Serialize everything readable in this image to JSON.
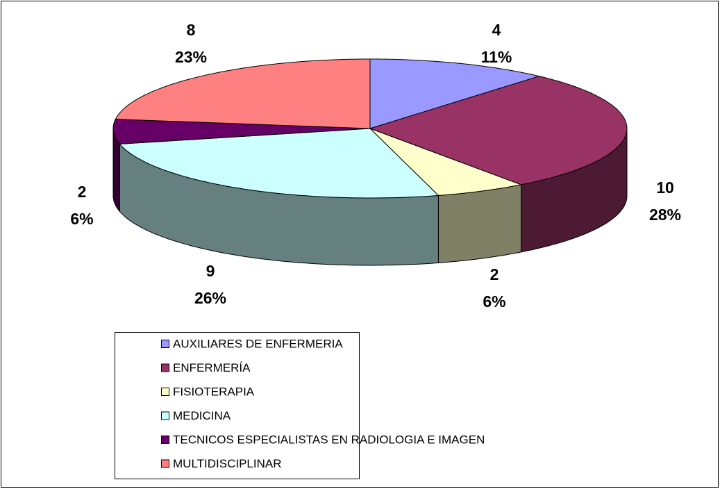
{
  "chart_data": {
    "type": "pie",
    "categories": [
      "AUXILIARES DE ENFERMERIA",
      "ENFERMERÍA",
      "FISIOTERAPIA",
      "MEDICINA",
      "TECNICOS ESPECIALISTAS EN RADIOLOGIA E IMAGEN",
      "MULTIDISCIPLINAR"
    ],
    "values": [
      4,
      10,
      2,
      9,
      2,
      8
    ],
    "percent_labels": [
      "11%",
      "28%",
      "6%",
      "26%",
      "6%",
      "23%"
    ],
    "colors": [
      "#9999ff",
      "#993366",
      "#ffffcc",
      "#ccffff",
      "#660066",
      "#ff8080"
    ],
    "legend": "bottom"
  }
}
